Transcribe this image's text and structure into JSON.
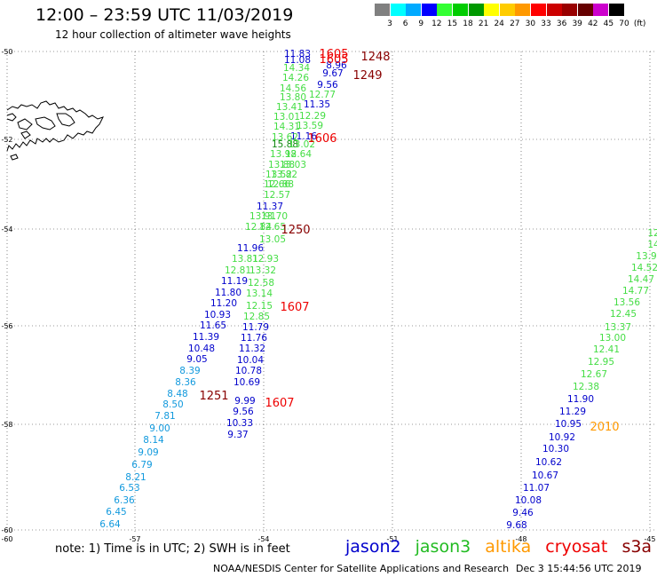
{
  "header": {
    "title": "12:00 – 23:59 UTC 11/03/2019",
    "subtitle": "12 hour collection of altimeter wave heights"
  },
  "colorbar": {
    "colors": [
      "#808080",
      "#00ffff",
      "#00aaff",
      "#0000ff",
      "#33ff33",
      "#00cc00",
      "#009900",
      "#ffff00",
      "#ffcc00",
      "#ff9900",
      "#ff0000",
      "#cc0000",
      "#990000",
      "#660000",
      "#cc00cc",
      "#000000"
    ],
    "ticks": [
      "3",
      "6",
      "9",
      "12",
      "15",
      "18",
      "21",
      "24",
      "27",
      "30",
      "33",
      "36",
      "39",
      "42",
      "45",
      "70",
      "(ft)"
    ]
  },
  "axes": {
    "lat_ticks": [
      "-50",
      "-52",
      "-54",
      "-56",
      "-58",
      "-60"
    ],
    "lon_ticks": [
      "-60",
      "-57",
      "-54",
      "-51",
      "-48",
      "-45"
    ]
  },
  "satellite_colors": {
    "jason2": "#0000cc",
    "jason3": "#22bb22",
    "altika": "#ff9900",
    "cryosat": "#ee0000",
    "s3a": "#880000"
  },
  "track_labels": [
    {
      "text": "1605",
      "sat": "cryosat"
    },
    {
      "text": "1248",
      "sat": "s3a"
    },
    {
      "text": "1605",
      "sat": "cryosat"
    },
    {
      "text": "1249",
      "sat": "s3a"
    },
    {
      "text": "1606",
      "sat": "cryosat"
    },
    {
      "text": "1250",
      "sat": "s3a"
    },
    {
      "text": "1607",
      "sat": "cryosat"
    },
    {
      "text": "1251",
      "sat": "s3a"
    },
    {
      "text": "1607",
      "sat": "cryosat"
    },
    {
      "text": "2010",
      "sat": "altika"
    }
  ],
  "readings": [
    {
      "v": "11.83",
      "c": "jason2"
    },
    {
      "v": "11.08",
      "c": "jason2"
    },
    {
      "v": "14.34",
      "c": "jason3"
    },
    {
      "v": "9.67",
      "c": "jason2"
    },
    {
      "v": "8.96",
      "c": "jason2"
    },
    {
      "v": "14.26",
      "c": "jason3"
    },
    {
      "v": "9.56",
      "c": "jason2"
    },
    {
      "v": "14.56",
      "c": "jason3"
    },
    {
      "v": "12.77",
      "c": "jason3"
    },
    {
      "v": "13.80",
      "c": "jason3"
    },
    {
      "v": "11.35",
      "c": "jason2"
    },
    {
      "v": "13.41",
      "c": "jason3"
    },
    {
      "v": "12.29",
      "c": "jason3"
    },
    {
      "v": "13.01",
      "c": "jason3"
    },
    {
      "v": "13.59",
      "c": "jason3"
    },
    {
      "v": "14.31",
      "c": "jason3"
    },
    {
      "v": "11.16",
      "c": "jason2"
    },
    {
      "v": "13.62",
      "c": "jason3"
    },
    {
      "v": "15.88",
      "c": "jason3d"
    },
    {
      "v": "13.02",
      "c": "jason3"
    },
    {
      "v": "13.98",
      "c": "jason3"
    },
    {
      "v": "12.64",
      "c": "jason3"
    },
    {
      "v": "13.88",
      "c": "jason3"
    },
    {
      "v": "13.03",
      "c": "jason3"
    },
    {
      "v": "13.52",
      "c": "jason3"
    },
    {
      "v": "13.82",
      "c": "jason3"
    },
    {
      "v": "12.66",
      "c": "jason3"
    },
    {
      "v": "12.88",
      "c": "jason3"
    },
    {
      "v": "12.57",
      "c": "jason3"
    },
    {
      "v": "11.37",
      "c": "jason2"
    },
    {
      "v": "13.91",
      "c": "jason3"
    },
    {
      "v": "13.70",
      "c": "jason3"
    },
    {
      "v": "12.84",
      "c": "jason3"
    },
    {
      "v": "12.65",
      "c": "jason3"
    },
    {
      "v": "13.05",
      "c": "jason3"
    },
    {
      "v": "11.96",
      "c": "jason2"
    },
    {
      "v": "13.81",
      "c": "jason3"
    },
    {
      "v": "12.93",
      "c": "jason3"
    },
    {
      "v": "12.81",
      "c": "jason3"
    },
    {
      "v": "13.32",
      "c": "jason3"
    },
    {
      "v": "11.19",
      "c": "jason2"
    },
    {
      "v": "12.58",
      "c": "jason3"
    },
    {
      "v": "11.80",
      "c": "jason2"
    },
    {
      "v": "13.14",
      "c": "jason3"
    },
    {
      "v": "11.20",
      "c": "jason2"
    },
    {
      "v": "12.15",
      "c": "jason3"
    },
    {
      "v": "10.93",
      "c": "jason2"
    },
    {
      "v": "12.85",
      "c": "jason3"
    },
    {
      "v": "11.65",
      "c": "jason2"
    },
    {
      "v": "11.79",
      "c": "jason2"
    },
    {
      "v": "11.39",
      "c": "jason2"
    },
    {
      "v": "11.76",
      "c": "jason2"
    },
    {
      "v": "10.48",
      "c": "jason2"
    },
    {
      "v": "11.32",
      "c": "jason2"
    },
    {
      "v": "9.05",
      "c": "jason2"
    },
    {
      "v": "10.04",
      "c": "jason2"
    },
    {
      "v": "8.39",
      "c": "lblue"
    },
    {
      "v": "10.78",
      "c": "jason2"
    },
    {
      "v": "8.36",
      "c": "lblue"
    },
    {
      "v": "10.69",
      "c": "jason2"
    },
    {
      "v": "8.48",
      "c": "lblue"
    },
    {
      "v": "9.99",
      "c": "jason2"
    },
    {
      "v": "8.50",
      "c": "lblue"
    },
    {
      "v": "9.56",
      "c": "jason2"
    },
    {
      "v": "7.81",
      "c": "lblue"
    },
    {
      "v": "10.33",
      "c": "jason2"
    },
    {
      "v": "9.00",
      "c": "lblue"
    },
    {
      "v": "9.37",
      "c": "jason2"
    },
    {
      "v": "8.14",
      "c": "lblue"
    },
    {
      "v": "9.09",
      "c": "lblue"
    },
    {
      "v": "6.79",
      "c": "lblue"
    },
    {
      "v": "8.21",
      "c": "lblue"
    },
    {
      "v": "6.53",
      "c": "lblue"
    },
    {
      "v": "6.36",
      "c": "lblue"
    },
    {
      "v": "6.45",
      "c": "lblue"
    },
    {
      "v": "6.64",
      "c": "lblue"
    },
    {
      "v": "12",
      "c": "jason3"
    },
    {
      "v": "14",
      "c": "jason3"
    },
    {
      "v": "13.9",
      "c": "jason3"
    },
    {
      "v": "14.52",
      "c": "jason3"
    },
    {
      "v": "14.47",
      "c": "jason3"
    },
    {
      "v": "14.77",
      "c": "jason3"
    },
    {
      "v": "13.56",
      "c": "jason3"
    },
    {
      "v": "12.45",
      "c": "jason3"
    },
    {
      "v": "13.37",
      "c": "jason3"
    },
    {
      "v": "13.00",
      "c": "jason3"
    },
    {
      "v": "12.41",
      "c": "jason3"
    },
    {
      "v": "12.95",
      "c": "jason3"
    },
    {
      "v": "12.67",
      "c": "jason3"
    },
    {
      "v": "12.38",
      "c": "jason3"
    },
    {
      "v": "11.90",
      "c": "jason2"
    },
    {
      "v": "11.29",
      "c": "jason2"
    },
    {
      "v": "10.95",
      "c": "jason2"
    },
    {
      "v": "10.92",
      "c": "jason2"
    },
    {
      "v": "10.30",
      "c": "jason2"
    },
    {
      "v": "10.62",
      "c": "jason2"
    },
    {
      "v": "10.67",
      "c": "jason2"
    },
    {
      "v": "11.07",
      "c": "jason2"
    },
    {
      "v": "10.08",
      "c": "jason2"
    },
    {
      "v": "9.46",
      "c": "jason2"
    },
    {
      "v": "9.68",
      "c": "jason2"
    }
  ],
  "footer": {
    "note": "note: 1) Time is in UTC; 2) SWH is in feet",
    "legend": [
      "jason2",
      "jason3",
      "altika",
      "cryosat",
      "s3a"
    ],
    "credit": "NOAA/NESDIS Center for Satellite Applications and Research",
    "generated": "Dec  3 15:44:56 UTC 2019"
  }
}
